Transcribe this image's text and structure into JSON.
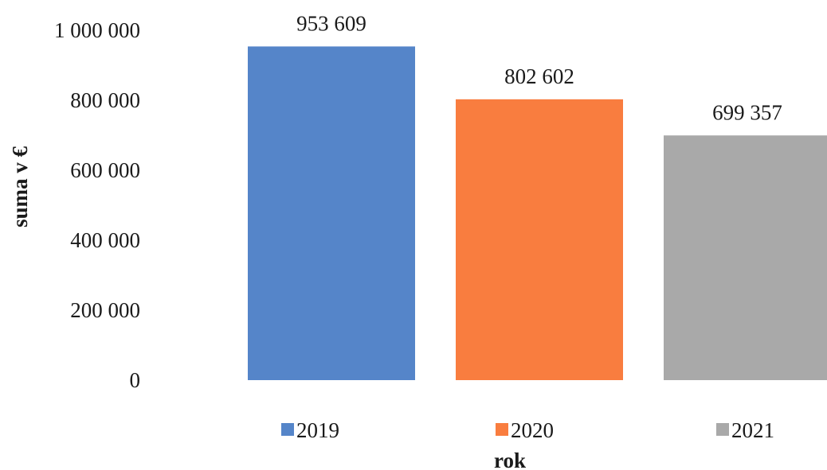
{
  "chart_data": {
    "type": "bar",
    "categories": [
      "2019",
      "2020",
      "2021"
    ],
    "values": [
      953609,
      802602,
      699357
    ],
    "value_labels": [
      "953 609",
      "802 602",
      "699 357"
    ],
    "colors": [
      "#5585c9",
      "#f97d3f",
      "#a9a9a9"
    ],
    "xlabel": "rok",
    "ylabel": "suma v €",
    "ylim": [
      0,
      1000000
    ],
    "yticks": [
      0,
      200000,
      400000,
      600000,
      800000,
      1000000
    ],
    "ytick_labels": [
      "0",
      "200 000",
      "400 000",
      "600 000",
      "800 000",
      "1 000 000"
    ],
    "grid": false,
    "legend": {
      "position": "bottom",
      "entries": [
        "2019",
        "2020",
        "2021"
      ]
    }
  }
}
